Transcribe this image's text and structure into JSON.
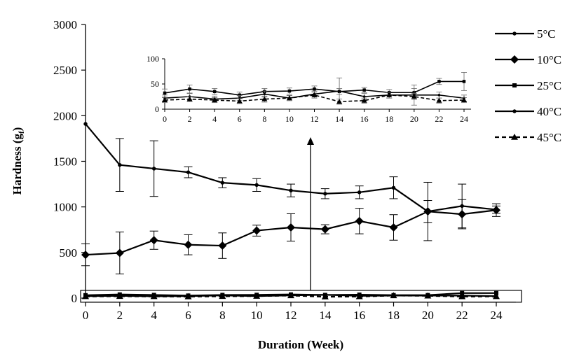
{
  "chart_data": {
    "type": "line",
    "xlabel": "Duration (Week)",
    "ylabel_main": "Hardness (g",
    "ylabel_sub": "f",
    "ylabel_end": ")",
    "x": [
      0,
      2,
      4,
      6,
      8,
      10,
      12,
      14,
      16,
      18,
      20,
      22,
      24
    ],
    "ylim": [
      0,
      3000
    ],
    "yticks": [
      0,
      500,
      1000,
      1500,
      2000,
      2500,
      3000
    ],
    "grid": false,
    "legend_position": "right",
    "series": [
      {
        "name": "5°C",
        "marker": "circle",
        "dash": false,
        "values": [
          1910,
          1460,
          1420,
          1380,
          1265,
          1240,
          1180,
          1145,
          1160,
          1210,
          950,
          1010,
          970
        ],
        "errors": [
          0,
          290,
          305,
          60,
          55,
          70,
          70,
          55,
          70,
          120,
          320,
          240,
          40
        ]
      },
      {
        "name": "10°C",
        "marker": "diamond",
        "dash": false,
        "values": [
          475,
          495,
          635,
          585,
          575,
          740,
          775,
          755,
          845,
          775,
          950,
          920,
          965
        ],
        "errors": [
          120,
          230,
          100,
          110,
          140,
          60,
          150,
          50,
          140,
          140,
          120,
          160,
          70
        ]
      },
      {
        "name": "25°C",
        "marker": "square",
        "dash": false,
        "values": [
          32,
          40,
          35,
          28,
          35,
          36,
          40,
          35,
          38,
          33,
          33,
          55,
          55
        ],
        "errors": [
          8,
          8,
          6,
          6,
          6,
          6,
          6,
          6,
          5,
          6,
          8,
          6,
          18
        ]
      },
      {
        "name": "40°C",
        "marker": "circle",
        "dash": false,
        "values": [
          22,
          25,
          20,
          22,
          30,
          22,
          30,
          36,
          25,
          28,
          28,
          28,
          22
        ],
        "errors": [
          6,
          6,
          6,
          5,
          6,
          5,
          6,
          26,
          6,
          6,
          20,
          6,
          6
        ]
      },
      {
        "name": "45°C",
        "marker": "triangle",
        "dash": true,
        "values": [
          18,
          20,
          18,
          16,
          20,
          22,
          28,
          15,
          17,
          28,
          25,
          17,
          18
        ],
        "errors": [
          5,
          5,
          5,
          5,
          6,
          5,
          6,
          5,
          5,
          6,
          6,
          5,
          5
        ]
      }
    ],
    "inset": {
      "ylim": [
        0,
        100
      ],
      "yticks": [
        0,
        50,
        100
      ]
    }
  }
}
